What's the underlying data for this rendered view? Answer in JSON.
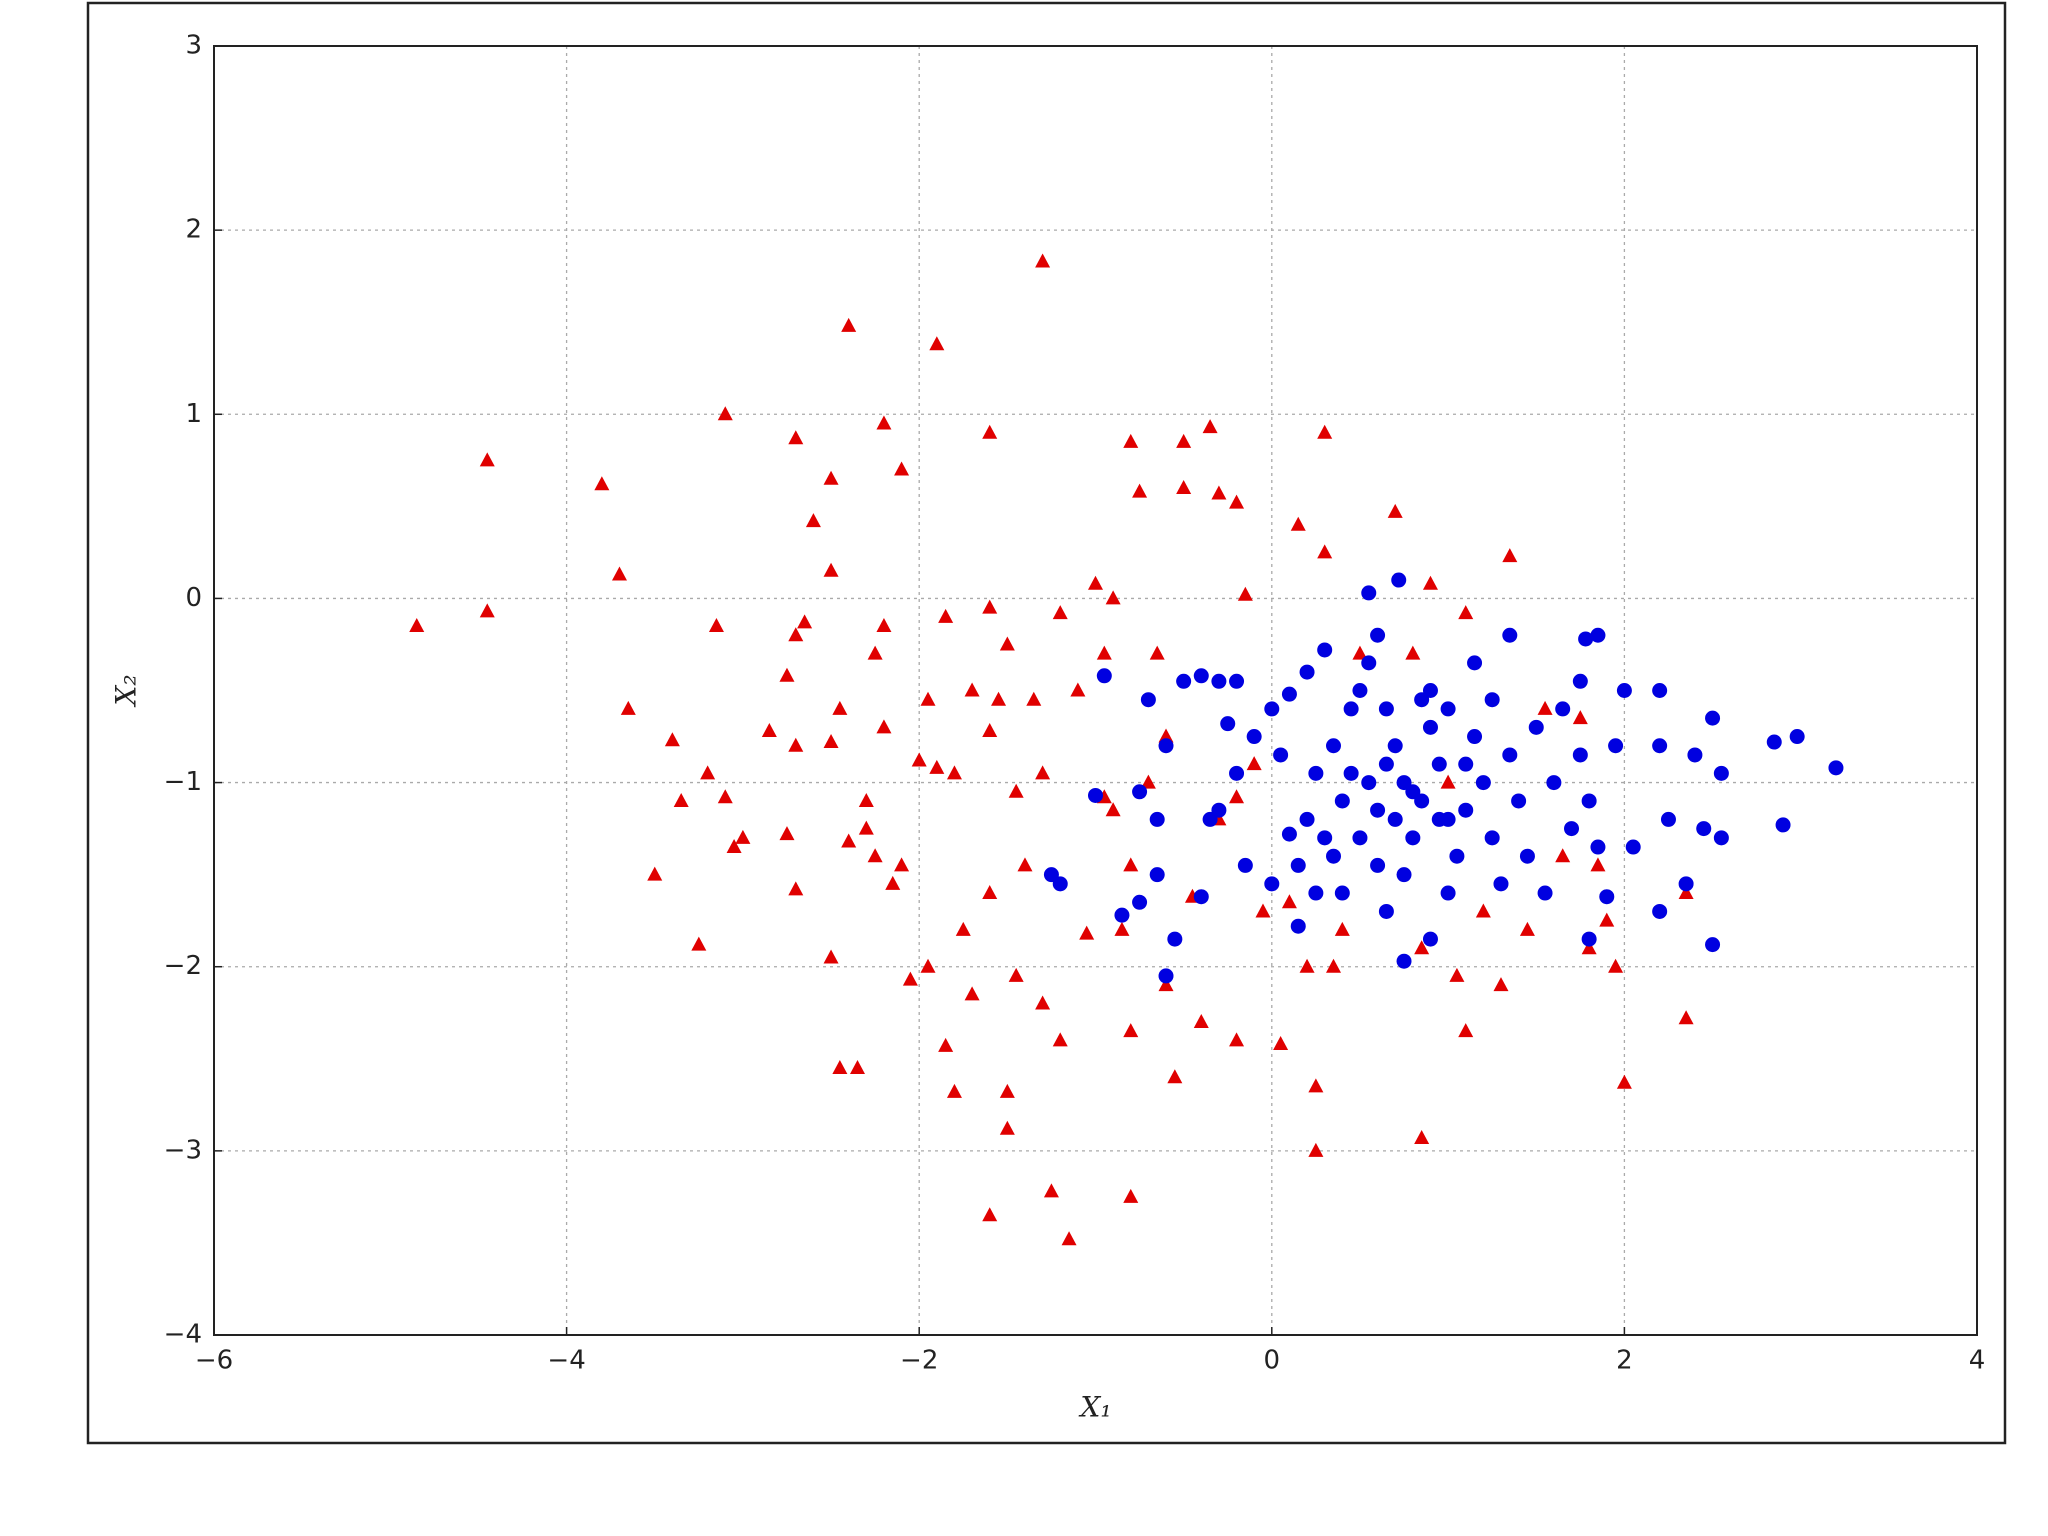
{
  "chart_data": {
    "type": "scatter",
    "xlabel": "X₁",
    "ylabel": "X₂",
    "xlim": [
      -6,
      4
    ],
    "ylim": [
      -4,
      3
    ],
    "xticks": [
      {
        "value": -6,
        "label": "−6"
      },
      {
        "value": -4,
        "label": "−4"
      },
      {
        "value": -2,
        "label": "−2"
      },
      0,
      2,
      4
    ],
    "yticks": [
      {
        "value": -4,
        "label": "−4"
      },
      {
        "value": -3,
        "label": "−3"
      },
      {
        "value": -2,
        "label": "−2"
      },
      {
        "value": -1,
        "label": "−1"
      },
      0,
      1,
      2,
      3
    ],
    "grid": true,
    "series": [
      {
        "marker": "triangle",
        "color": "#e00000",
        "x": [
          -4.85,
          -4.45,
          -4.45,
          -3.8,
          -3.7,
          -3.65,
          -3.4,
          -3.35,
          -3.25,
          -3.5,
          -3.2,
          -3.15,
          -3.1,
          -3.1,
          -3.05,
          -3.0,
          -2.85,
          -2.75,
          -2.75,
          -2.7,
          -2.7,
          -2.65,
          -2.7,
          -2.7,
          -2.6,
          -2.5,
          -2.5,
          -2.5,
          -2.5,
          -2.45,
          -2.45,
          -2.4,
          -2.4,
          -2.35,
          -2.3,
          -2.3,
          -2.25,
          -2.25,
          -2.2,
          -2.2,
          -2.2,
          -2.15,
          -2.1,
          -2.1,
          -2.05,
          -2.0,
          -1.95,
          -1.95,
          -1.9,
          -1.85,
          -1.85,
          -1.8,
          -1.8,
          -1.75,
          -1.7,
          -1.7,
          -1.6,
          -1.6,
          -1.6,
          -1.6,
          -1.6,
          -1.55,
          -1.5,
          -1.5,
          -1.5,
          -1.45,
          -1.45,
          -1.35,
          -1.3,
          -1.3,
          -1.25,
          -1.2,
          -1.2,
          -1.15,
          -1.1,
          -1.05,
          -1.0,
          -0.95,
          -0.9,
          -0.9,
          -0.85,
          -0.8,
          -0.8,
          -0.8,
          -0.8,
          -0.75,
          -0.7,
          -0.65,
          -0.6,
          -0.55,
          -0.5,
          -0.5,
          -0.45,
          -0.4,
          -0.35,
          -0.3,
          -0.3,
          -0.2,
          -0.2,
          -0.2,
          -0.15,
          -0.1,
          -0.05,
          0.05,
          0.1,
          0.15,
          0.2,
          0.25,
          0.25,
          0.3,
          0.3,
          0.35,
          0.4,
          0.5,
          0.7,
          0.8,
          0.85,
          0.85,
          0.9,
          1.0,
          1.05,
          1.1,
          1.1,
          1.2,
          1.3,
          1.35,
          1.45,
          1.55,
          1.65,
          1.75,
          1.8,
          1.85,
          1.9,
          1.95,
          2.0,
          2.35,
          2.35,
          -0.95,
          -0.6,
          -1.4,
          -1.9,
          -1.3
        ],
        "y": [
          -0.15,
          0.75,
          -0.07,
          0.62,
          0.13,
          -0.6,
          -0.77,
          -1.1,
          -1.88,
          -1.5,
          -0.95,
          -0.15,
          1.0,
          -1.08,
          -1.35,
          -1.3,
          -0.72,
          -0.42,
          -1.28,
          0.87,
          -0.2,
          -0.13,
          -0.8,
          -1.58,
          0.42,
          0.65,
          0.15,
          -0.78,
          -1.95,
          -0.6,
          -2.55,
          1.48,
          -1.32,
          -2.55,
          -1.1,
          -1.25,
          -1.4,
          -0.3,
          -0.15,
          0.95,
          -0.7,
          -1.55,
          0.7,
          -1.45,
          -2.07,
          -0.88,
          -0.55,
          -2.0,
          1.38,
          -0.1,
          -2.43,
          -0.95,
          -2.68,
          -1.8,
          -0.5,
          -2.15,
          0.9,
          -0.05,
          -0.72,
          -1.6,
          -3.35,
          -0.55,
          -2.68,
          -2.88,
          -0.25,
          -1.05,
          -2.05,
          -0.55,
          1.83,
          -2.2,
          -3.22,
          -0.08,
          -2.4,
          -3.48,
          -0.5,
          -1.82,
          0.08,
          -0.3,
          0.0,
          -1.15,
          -1.8,
          0.85,
          -1.45,
          -2.35,
          -3.25,
          0.58,
          -1.0,
          -0.3,
          -2.1,
          -2.6,
          0.6,
          0.85,
          -1.62,
          -2.3,
          0.93,
          0.57,
          -1.2,
          0.52,
          -1.08,
          -2.4,
          0.02,
          -0.9,
          -1.7,
          -2.42,
          -1.65,
          0.4,
          -2.0,
          -2.65,
          -3.0,
          0.9,
          0.25,
          -2.0,
          -1.8,
          -0.3,
          0.47,
          -0.3,
          -1.9,
          -2.93,
          0.08,
          -1.0,
          -2.05,
          -2.35,
          -0.08,
          -1.7,
          -2.1,
          0.23,
          -1.8,
          -0.6,
          -1.4,
          -0.65,
          -1.9,
          -1.45,
          -1.75,
          -2.0,
          -2.63,
          -1.6,
          -2.28,
          -1.08,
          -0.75,
          -1.45,
          -0.92,
          -0.95
        ]
      },
      {
        "marker": "circle",
        "color": "#0000e0",
        "x": [
          -0.95,
          -1.0,
          -1.25,
          -1.2,
          -0.85,
          -0.75,
          -0.75,
          -0.7,
          -0.65,
          -0.65,
          -0.6,
          -0.6,
          -0.55,
          -0.5,
          -0.4,
          -0.4,
          -0.35,
          -0.3,
          -0.3,
          -0.25,
          -0.2,
          -0.2,
          -0.15,
          -0.1,
          0.0,
          0.0,
          0.05,
          0.1,
          0.1,
          0.15,
          0.15,
          0.2,
          0.2,
          0.25,
          0.25,
          0.3,
          0.3,
          0.35,
          0.35,
          0.4,
          0.4,
          0.45,
          0.45,
          0.5,
          0.5,
          0.55,
          0.55,
          0.55,
          0.6,
          0.6,
          0.65,
          0.65,
          0.7,
          0.7,
          0.72,
          0.75,
          0.75,
          0.75,
          0.8,
          0.85,
          0.85,
          0.9,
          0.9,
          0.95,
          0.95,
          1.0,
          1.0,
          1.05,
          1.1,
          1.1,
          1.15,
          1.15,
          1.2,
          1.25,
          1.25,
          1.3,
          1.35,
          1.35,
          1.4,
          1.45,
          1.5,
          1.55,
          1.6,
          1.65,
          1.7,
          1.75,
          1.75,
          1.78,
          1.8,
          1.8,
          1.85,
          1.85,
          1.9,
          1.95,
          2.0,
          2.05,
          2.2,
          2.2,
          2.2,
          2.25,
          2.35,
          2.4,
          2.45,
          2.5,
          2.5,
          2.55,
          2.55,
          2.85,
          2.9,
          2.98,
          3.2,
          0.6,
          0.8,
          1.0,
          0.9,
          0.65
        ],
        "y": [
          -0.42,
          -1.07,
          -1.5,
          -1.55,
          -1.72,
          -1.65,
          -1.05,
          -0.55,
          -1.5,
          -1.2,
          -0.8,
          -2.05,
          -1.85,
          -0.45,
          -0.42,
          -1.62,
          -1.2,
          -1.15,
          -0.45,
          -0.68,
          -0.95,
          -0.45,
          -1.45,
          -0.75,
          -0.6,
          -1.55,
          -0.85,
          -1.28,
          -0.52,
          -1.78,
          -1.45,
          -1.2,
          -0.4,
          -0.95,
          -1.6,
          -1.3,
          -0.28,
          -0.8,
          -1.4,
          -1.1,
          -1.6,
          -0.6,
          -0.95,
          -1.3,
          -0.5,
          0.03,
          -0.35,
          -1.0,
          -0.2,
          -1.45,
          -0.9,
          -1.7,
          -1.2,
          -0.8,
          0.1,
          -1.0,
          -1.5,
          -1.97,
          -1.3,
          -0.55,
          -1.1,
          -0.7,
          -1.85,
          -0.9,
          -1.2,
          -1.6,
          -0.6,
          -1.4,
          -0.9,
          -1.15,
          -0.35,
          -0.75,
          -1.0,
          -1.3,
          -0.55,
          -1.55,
          -0.2,
          -0.85,
          -1.1,
          -1.4,
          -0.7,
          -1.6,
          -1.0,
          -0.6,
          -1.25,
          -0.85,
          -0.45,
          -0.22,
          -1.1,
          -1.85,
          -0.2,
          -1.35,
          -1.62,
          -0.8,
          -0.5,
          -1.35,
          -0.5,
          -0.8,
          -1.7,
          -1.2,
          -1.55,
          -0.85,
          -1.25,
          -0.65,
          -1.88,
          -1.3,
          -0.95,
          -0.78,
          -1.23,
          -0.75,
          -0.92,
          -1.15,
          -1.05,
          -1.2,
          -0.5,
          -0.6
        ]
      }
    ]
  }
}
